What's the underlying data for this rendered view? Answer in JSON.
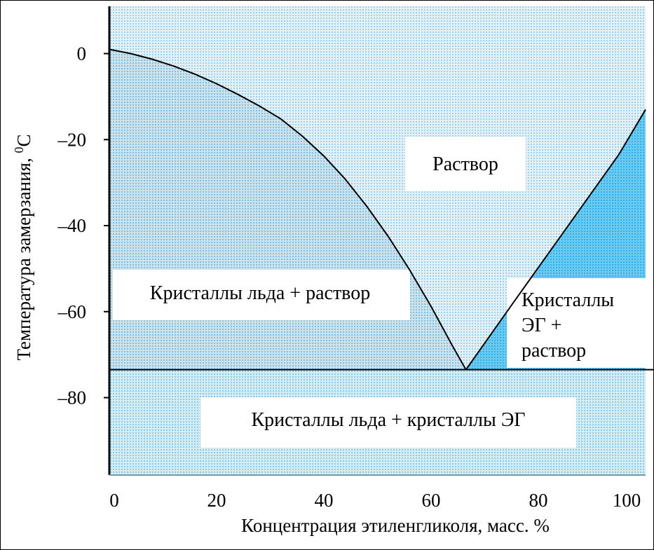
{
  "chart_data": {
    "type": "area",
    "title": "",
    "xlabel": "Концентрация этиленгликоля, масс. %",
    "ylabel": "Температура замерзания, ",
    "ylabel_unit_sup": "0",
    "ylabel_unit": "C",
    "xlim": [
      0,
      100
    ],
    "ylim": [
      -98,
      11
    ],
    "x_ticks": [
      0,
      20,
      40,
      60,
      80,
      100
    ],
    "y_ticks": [
      0,
      -20,
      -40,
      -60,
      -80
    ],
    "x_tick_labels": [
      "0",
      "20",
      "40",
      "60",
      "80",
      "100"
    ],
    "y_tick_labels": [
      "0",
      "–20",
      "–40",
      "–60",
      "–80"
    ],
    "grid": false,
    "series": [
      {
        "values_x": [
          0,
          4,
          8,
          12,
          16,
          20,
          24,
          28,
          32,
          36,
          40,
          44,
          48,
          52,
          56,
          60,
          64,
          66.5
        ],
        "values_y": [
          1,
          0,
          -1.3,
          -2.9,
          -4.8,
          -7.0,
          -9.5,
          -12.2,
          -15.2,
          -19.2,
          -23.8,
          -29.2,
          -35.5,
          -42.5,
          -50.3,
          -58.8,
          -68.0,
          -73.5
        ]
      },
      {
        "values_x": [
          66.5,
          75,
          85,
          95,
          100
        ],
        "values_y": [
          -73.5,
          -58.5,
          -41,
          -23.5,
          -13
        ]
      },
      {
        "values_x": [
          0,
          100
        ],
        "values_y": [
          -73.5,
          -73.5
        ]
      }
    ],
    "regions": [
      {
        "label_lines": [
          "Раствор"
        ],
        "color": "#d8ecf4"
      },
      {
        "label_lines": [
          "Кристаллы льда + раствор"
        ],
        "color": "#b9dcec"
      },
      {
        "label_lines": [
          "Кристаллы",
          "ЭГ +",
          "раствор"
        ],
        "color": "#55c3ee"
      },
      {
        "label_lines": [
          "Кристаллы льда + кристаллы ЭГ"
        ],
        "color": "#c2e5f2"
      }
    ]
  }
}
